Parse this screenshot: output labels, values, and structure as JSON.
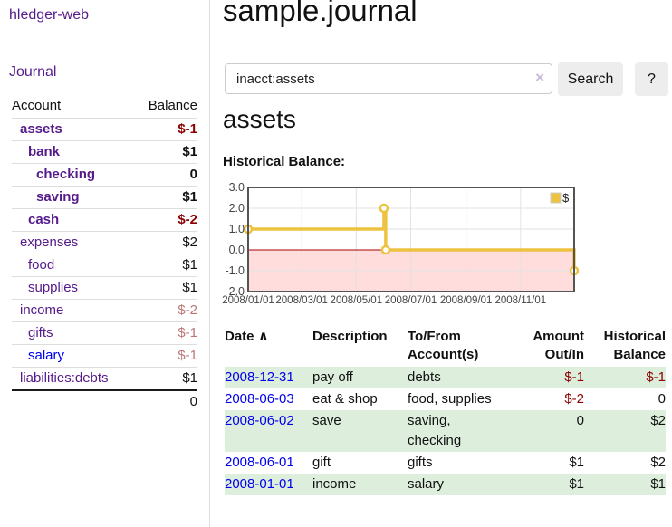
{
  "app": {
    "title": "hledger-web"
  },
  "sidebar": {
    "journal_link": "Journal",
    "table": {
      "account_header": "Account",
      "balance_header": "Balance",
      "rows": [
        {
          "name": "assets",
          "level": 1,
          "bold": true,
          "balance": "$-1",
          "negative": "strong"
        },
        {
          "name": "bank",
          "level": 2,
          "bold": true,
          "balance": "$1"
        },
        {
          "name": "checking",
          "level": 3,
          "bold": true,
          "balance": "0"
        },
        {
          "name": "saving",
          "level": 3,
          "bold": true,
          "balance": "$1"
        },
        {
          "name": "cash",
          "level": 2,
          "bold": true,
          "balance": "$-2",
          "negative": "strong"
        },
        {
          "name": "expenses",
          "level": 1,
          "bold": false,
          "balance": "$2"
        },
        {
          "name": "food",
          "level": 2,
          "bold": false,
          "balance": "$1"
        },
        {
          "name": "supplies",
          "level": 2,
          "bold": false,
          "balance": "$1"
        },
        {
          "name": "income",
          "level": 1,
          "bold": false,
          "balance": "$-2",
          "negative": "faded"
        },
        {
          "name": "gifts",
          "level": 2,
          "bold": false,
          "balance": "$-1",
          "negative": "faded"
        },
        {
          "name": "salary",
          "level": 2,
          "bold": false,
          "balance": "$-1",
          "negative": "faded",
          "link_color": "blue"
        },
        {
          "name": "liabilities:debts",
          "level": 1,
          "bold": false,
          "balance": "$1"
        }
      ],
      "total": "0"
    }
  },
  "main": {
    "title": "sample.journal",
    "search": {
      "value": "inacct:assets",
      "clear_icon": "×",
      "search_button": "Search",
      "help_button": "?"
    },
    "account_title": "assets",
    "chart_title": "Historical Balance:",
    "register": {
      "headers": {
        "date": "Date",
        "sort_icon": "∧",
        "description": "Description",
        "accounts": "To/From Account(s)",
        "amount": "Amount Out/In",
        "balance": "Historical Balance"
      },
      "rows": [
        {
          "date": "2008-12-31",
          "description": "pay off",
          "accounts": "debts",
          "amount": "$-1",
          "amount_negative": true,
          "balance": "$-1",
          "balance_negative": true
        },
        {
          "date": "2008-06-03",
          "description": "eat & shop",
          "accounts": "food, supplies",
          "amount": "$-2",
          "amount_negative": true,
          "balance": "0",
          "balance_negative": false
        },
        {
          "date": "2008-06-02",
          "description": "save",
          "accounts": "saving, checking",
          "amount": "0",
          "amount_negative": false,
          "balance": "$2",
          "balance_negative": false
        },
        {
          "date": "2008-06-01",
          "description": "gift",
          "accounts": "gifts",
          "amount": "$1",
          "amount_negative": false,
          "balance": "$2",
          "balance_negative": false
        },
        {
          "date": "2008-01-01",
          "description": "income",
          "accounts": "salary",
          "amount": "$1",
          "amount_negative": false,
          "balance": "$1",
          "balance_negative": false
        }
      ]
    }
  },
  "chart_data": {
    "type": "line",
    "title": "Historical Balance",
    "steps": true,
    "legend": {
      "label": "$",
      "position": "top-right"
    },
    "series": [
      {
        "name": "$",
        "points": [
          {
            "date": "2008-01-01",
            "day": 0,
            "value": 1
          },
          {
            "date": "2008-06-01",
            "day": 152,
            "value": 2
          },
          {
            "date": "2008-06-03",
            "day": 154,
            "value": 0
          },
          {
            "date": "2008-12-31",
            "day": 365,
            "value": -1
          }
        ]
      }
    ],
    "x_ticks": [
      {
        "label": "2008/01/01",
        "day": 0
      },
      {
        "label": "2008/03/01",
        "day": 60
      },
      {
        "label": "2008/05/01",
        "day": 121
      },
      {
        "label": "2008/07/01",
        "day": 182
      },
      {
        "label": "2008/09/01",
        "day": 244
      },
      {
        "label": "2008/11/01",
        "day": 305
      }
    ],
    "y_ticks": [
      3.0,
      2.0,
      1.0,
      0.0,
      -1.0,
      -2.0
    ],
    "x_range_days": 365,
    "ylim": [
      -2,
      3
    ],
    "grid": true
  },
  "colors": {
    "link_purple": "#551a8b",
    "link_blue": "#0000ee",
    "negative_strong": "#8b0000",
    "negative_faded": "#bb7777",
    "row_green": "#ddeedd",
    "series_gold": "#edc240",
    "negative_fill": "#ffdddd",
    "zero_line": "#aa0000",
    "grid_line": "#e2e2e2",
    "chart_border": "#545454"
  }
}
